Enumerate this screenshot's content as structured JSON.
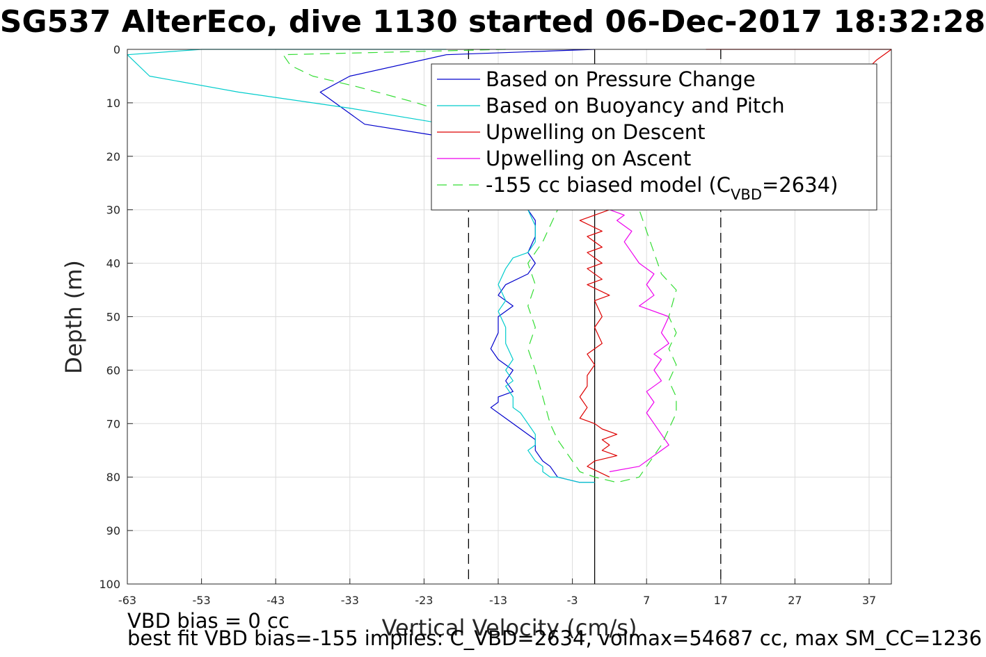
{
  "title": "SG537 AlterEco, dive 1130 started 06-Dec-2017 18:32:28",
  "chart_data": {
    "type": "line",
    "xlabel": "Vertical Velocity (cm/s)",
    "ylabel": "Depth (m)",
    "xlim": [
      -63,
      40
    ],
    "ylim": [
      0,
      100
    ],
    "y_reversed": true,
    "grid": true,
    "xticks": [
      -63,
      -53,
      -43,
      -33,
      -23,
      -13,
      -3,
      7,
      17,
      27,
      37
    ],
    "yticks": [
      0,
      10,
      20,
      30,
      40,
      50,
      60,
      70,
      80,
      90,
      100
    ],
    "legend_position": "top-right",
    "reference_lines": [
      {
        "orientation": "vertical",
        "x": 0,
        "style": "solid",
        "color": "#000000"
      },
      {
        "orientation": "vertical",
        "x": -17,
        "style": "dashed",
        "color": "#000000"
      },
      {
        "orientation": "vertical",
        "x": 17,
        "style": "dashed",
        "color": "#000000"
      }
    ],
    "series": [
      {
        "name": "Based on Pressure Change",
        "color": "#0000cc",
        "style": "solid",
        "x": [
          0,
          -20,
          -33,
          -37,
          -31,
          -22,
          -14,
          -10,
          -9,
          -8,
          -8,
          -9,
          -8,
          -9,
          -12,
          -13,
          -11,
          -13,
          -13,
          -14,
          -13,
          -11,
          -12,
          -11,
          -13,
          -13,
          -14,
          -12,
          -10,
          -8,
          -8,
          -7,
          -6,
          -5,
          -2,
          0
        ],
        "y": [
          0,
          1,
          5,
          8,
          14,
          16,
          20,
          26,
          30,
          32,
          35,
          38,
          40,
          42,
          44,
          46,
          48,
          50,
          53,
          56,
          58,
          60,
          62,
          64,
          65,
          66,
          67,
          69,
          71,
          73,
          75,
          77,
          78,
          80,
          81,
          81
        ]
      },
      {
        "name": "Based on Buoyancy and Pitch",
        "color": "#00cccc",
        "style": "solid",
        "x": [
          -20,
          -53,
          -63,
          -60,
          -48,
          -33,
          -20,
          -10,
          -9,
          -8,
          -8,
          -9,
          -11,
          -12,
          -13,
          -12,
          -13,
          -12,
          -12,
          -11,
          -12,
          -11,
          -12,
          -11,
          -11,
          -10,
          -9,
          -8,
          -8,
          -9,
          -8,
          -7,
          -7,
          -6,
          -5,
          -2,
          0
        ],
        "y": [
          0,
          0,
          1,
          5,
          8,
          11,
          14,
          26,
          30,
          33,
          36,
          38,
          39,
          41,
          44,
          47,
          49,
          52,
          55,
          58,
          60,
          62,
          63,
          65,
          67,
          68,
          70,
          72,
          74,
          75,
          77,
          78,
          79,
          80,
          80,
          81,
          81
        ]
      },
      {
        "name": "Upwelling on Descent",
        "color": "#dd0000",
        "style": "solid",
        "x": [
          15,
          40,
          38,
          20,
          2,
          0,
          -2,
          1,
          -1,
          1,
          -1,
          1,
          -1,
          1,
          -1,
          2,
          0,
          1,
          0,
          1,
          -1,
          0,
          -1,
          -1,
          -2,
          -1,
          -2,
          0,
          1,
          3,
          1,
          2,
          1,
          3,
          0,
          -1,
          2
        ],
        "y": [
          0,
          0,
          2,
          26,
          30,
          31,
          32,
          34,
          35,
          37,
          38,
          40,
          41,
          43,
          44,
          46,
          47,
          50,
          52,
          55,
          57,
          59,
          61,
          63,
          65,
          67,
          69,
          70,
          71,
          72,
          73,
          74,
          75,
          76,
          77,
          78,
          80
        ]
      },
      {
        "name": "Upwelling on Ascent",
        "color": "#ee00ee",
        "style": "solid",
        "x": [
          2,
          6,
          8,
          10,
          9,
          8,
          7,
          8,
          7,
          9,
          8,
          9,
          8,
          10,
          9,
          10,
          6,
          8,
          7,
          8,
          6,
          5,
          4,
          5,
          3,
          4,
          2,
          3,
          1,
          2,
          1,
          0,
          2
        ],
        "y": [
          79,
          78,
          76,
          74,
          72,
          70,
          68,
          66,
          64,
          62,
          60,
          58,
          57,
          55,
          53,
          50,
          48,
          46,
          44,
          42,
          40,
          38,
          36,
          34,
          32,
          31,
          30,
          28,
          26,
          24,
          22,
          20,
          18
        ]
      },
      {
        "name": "-155 cc biased model (C_VBD=2634)",
        "legend_main": "-155 cc biased model (C",
        "legend_sub": "VBD",
        "legend_tail": "=2634)",
        "color": "#33dd33",
        "style": "dashed",
        "x": [
          -12,
          -42,
          -41,
          -38,
          -32,
          -24,
          -15,
          -8,
          -5,
          -6,
          -7,
          -8,
          -9,
          -8,
          -9,
          -8,
          -9,
          -8,
          -7,
          -6,
          -5,
          -4,
          -3,
          -2,
          0,
          3,
          6,
          7,
          8,
          9,
          10,
          11,
          11,
          10,
          11,
          10,
          11,
          10,
          11,
          9,
          8,
          7,
          6
        ],
        "y": [
          0,
          1,
          3,
          5,
          7,
          10,
          14,
          26,
          30,
          33,
          36,
          38,
          40,
          44,
          48,
          52,
          56,
          60,
          65,
          70,
          73,
          75,
          77,
          79,
          80,
          81,
          80,
          78,
          76,
          74,
          71,
          68,
          65,
          62,
          59,
          56,
          53,
          50,
          45,
          42,
          38,
          34,
          30
        ]
      }
    ]
  },
  "footnotes": [
    "VBD bias = 0 cc",
    "best fit VBD bias=-155 implies: C_VBD=2634, volmax=54687 cc, max SM_CC=1236"
  ]
}
